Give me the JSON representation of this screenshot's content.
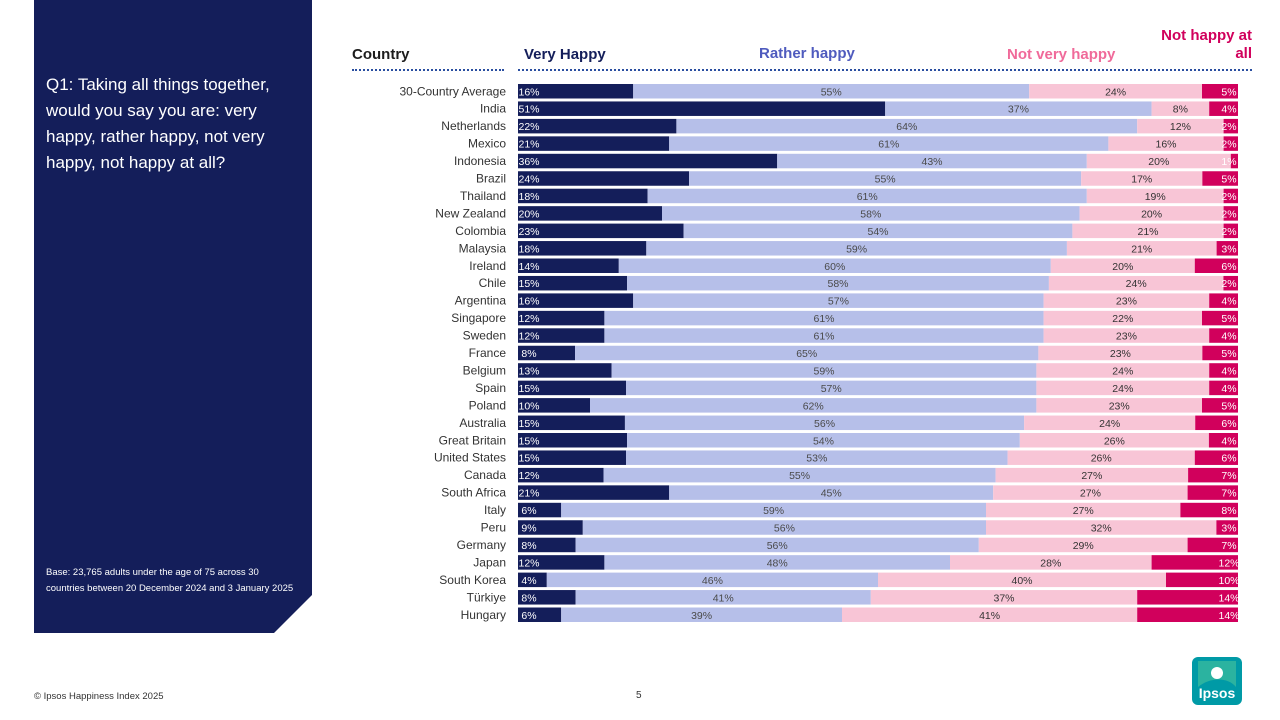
{
  "question": "Q1: Taking all things together, would you say you are: very happy, rather happy, not very happy, not happy at all?",
  "base_note": "Base: 23,765 adults under the age of 75 across 30 countries between 20 December 2024 and 3 January 2025",
  "headers": {
    "country": "Country",
    "very_happy": "Very Happy",
    "rather_happy": "Rather happy",
    "not_very_happy": "Not very happy",
    "not_happy_at_all": "Not happy at all"
  },
  "footer": {
    "copyright": "© Ipsos Happiness Index 2025",
    "page": "5"
  },
  "logo_text": "Ipsos",
  "colors": {
    "very_happy": "#141e5a",
    "rather_happy": "#b6bfe9",
    "not_very_happy": "#f8c5d6",
    "not_happy_at_all": "#d1005c"
  },
  "chart_data": {
    "type": "bar",
    "orientation": "horizontal",
    "stacked": true,
    "categories": [
      "30-Country Average",
      "India",
      "Netherlands",
      "Mexico",
      "Indonesia",
      "Brazil",
      "Thailand",
      "New Zealand",
      "Colombia",
      "Malaysia",
      "Ireland",
      "Chile",
      "Argentina",
      "Singapore",
      "Sweden",
      "France",
      "Belgium",
      "Spain",
      "Poland",
      "Australia",
      "Great Britain",
      "United States",
      "Canada",
      "South Africa",
      "Italy",
      "Peru",
      "Germany",
      "Japan",
      "South Korea",
      "Türkiye",
      "Hungary"
    ],
    "series": [
      {
        "name": "Very Happy",
        "values": [
          16,
          51,
          22,
          21,
          36,
          24,
          18,
          20,
          23,
          18,
          14,
          15,
          16,
          12,
          12,
          8,
          13,
          15,
          10,
          15,
          15,
          15,
          12,
          21,
          6,
          9,
          8,
          12,
          4,
          8,
          6
        ]
      },
      {
        "name": "Rather happy",
        "values": [
          55,
          37,
          64,
          61,
          43,
          55,
          61,
          58,
          54,
          59,
          60,
          58,
          57,
          61,
          61,
          65,
          59,
          57,
          62,
          56,
          54,
          53,
          55,
          45,
          59,
          56,
          56,
          48,
          46,
          41,
          39
        ]
      },
      {
        "name": "Not very happy",
        "values": [
          24,
          8,
          12,
          16,
          20,
          17,
          19,
          20,
          21,
          21,
          20,
          24,
          23,
          22,
          23,
          23,
          24,
          24,
          23,
          24,
          26,
          26,
          27,
          27,
          27,
          32,
          29,
          28,
          40,
          37,
          41
        ]
      },
      {
        "name": "Not happy at all",
        "values": [
          5,
          4,
          2,
          2,
          1,
          5,
          2,
          2,
          2,
          3,
          6,
          2,
          4,
          5,
          4,
          5,
          4,
          4,
          5,
          6,
          4,
          6,
          7,
          7,
          8,
          3,
          7,
          12,
          10,
          14,
          14
        ]
      }
    ],
    "value_suffix": "%",
    "xlim": [
      0,
      100
    ],
    "legend": "top"
  }
}
